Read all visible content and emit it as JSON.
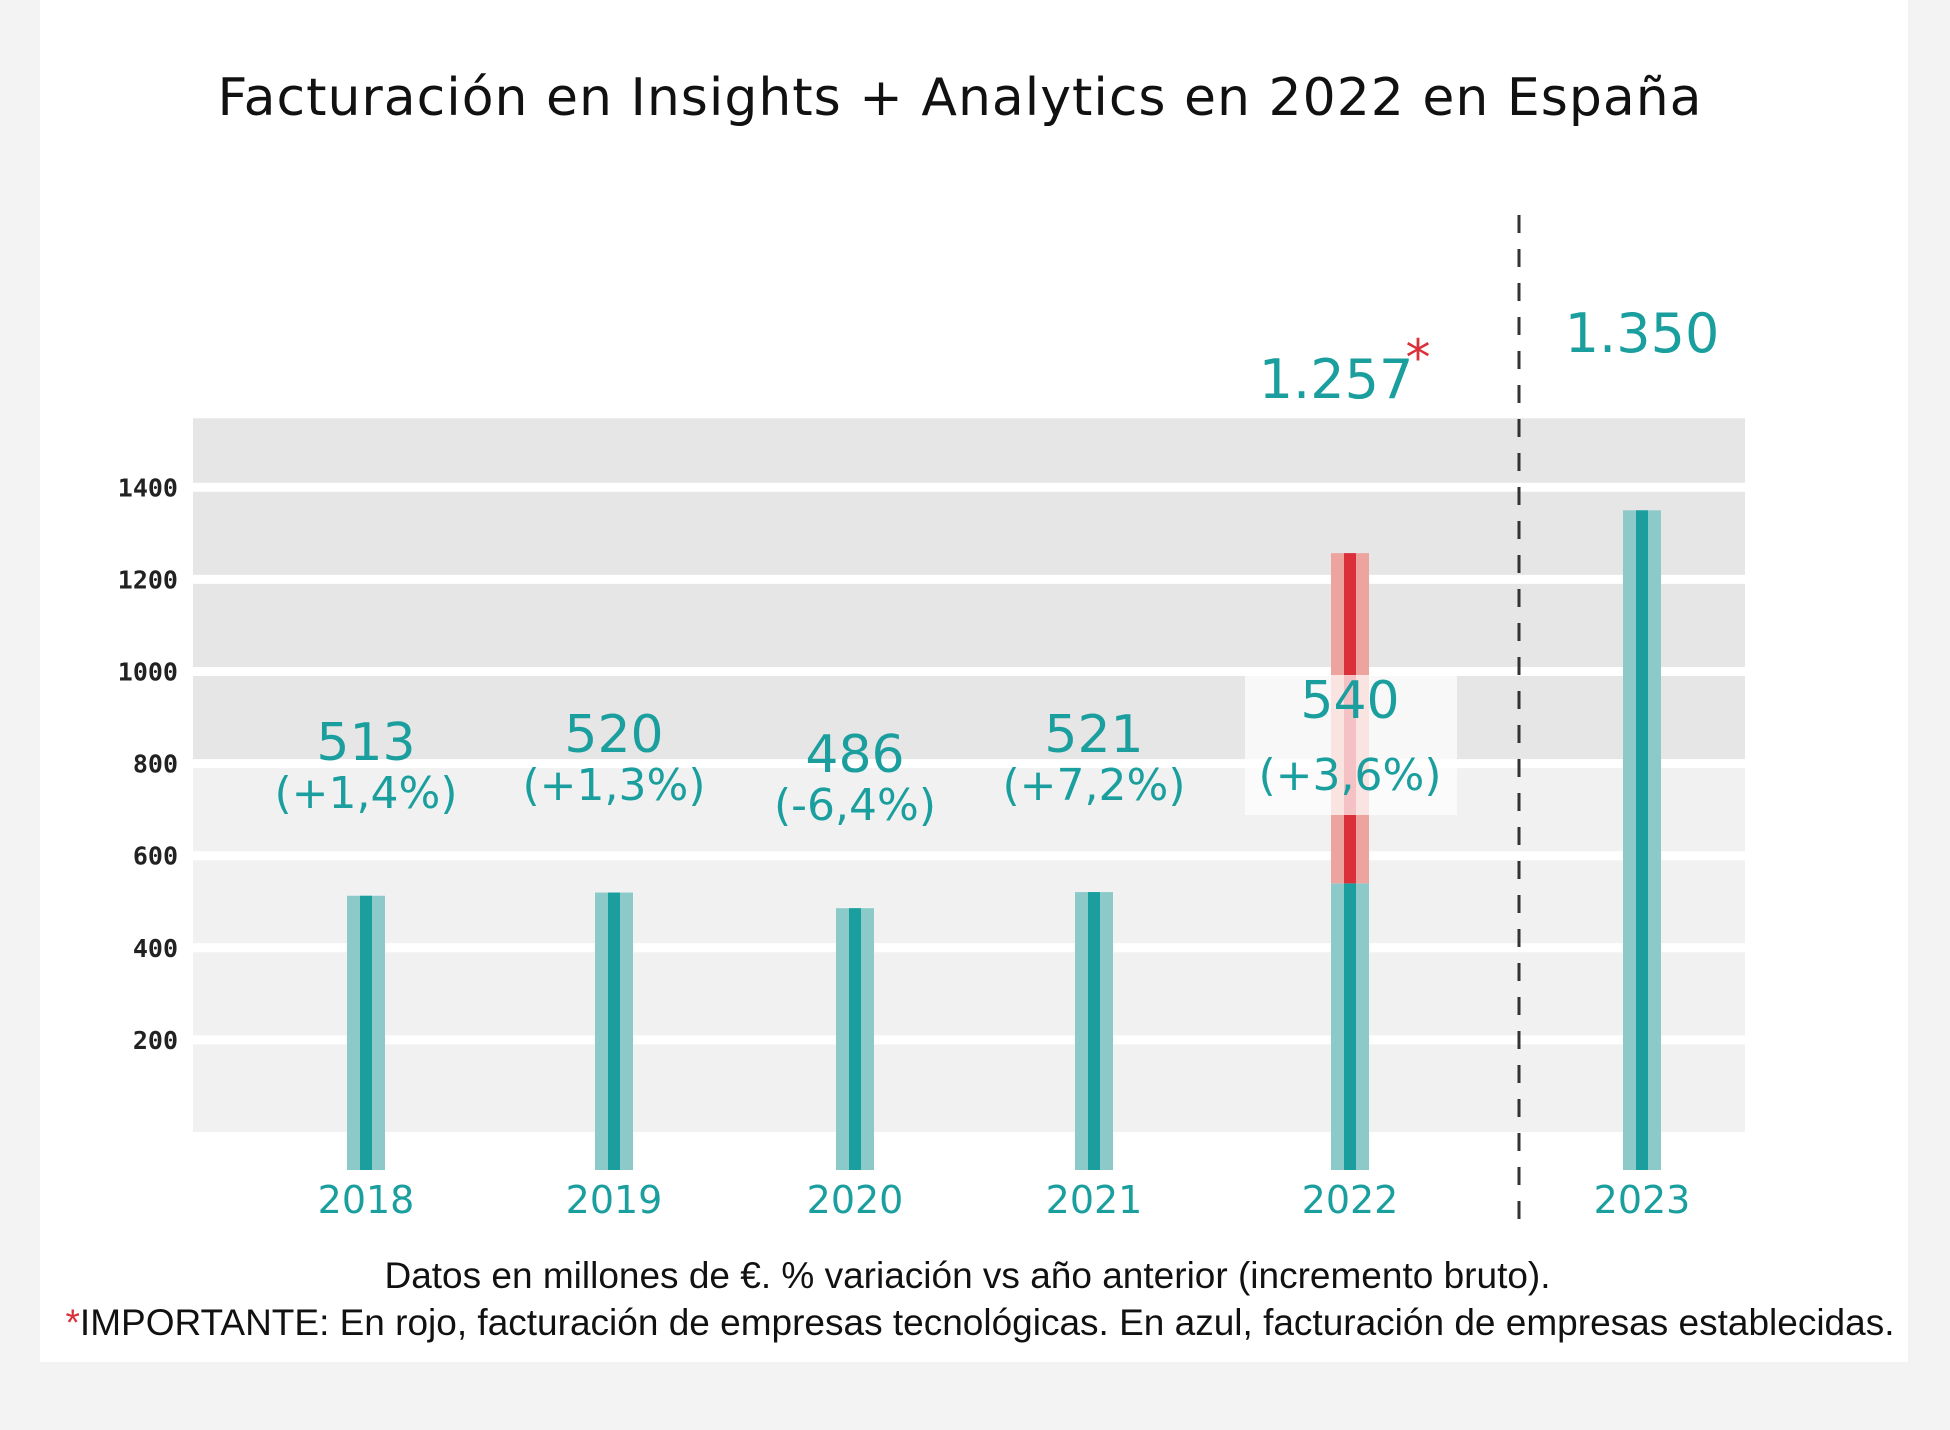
{
  "title": "Facturación en Insights + Analytics en 2022 en España",
  "footnote_1": "Datos en millones de €. % variación vs año anterior (incremento bruto).",
  "footnote_2_marker": "*",
  "footnote_2": "IMPORTANTE: En rojo, facturación de empresas tecnológicas. En azul, facturación de empresas establecidas.",
  "colors": {
    "established": "#1a9e9e",
    "established_light": "#8ccaca",
    "tech": "#d9303a",
    "tech_light": "#eea49e",
    "band_dark": "#e6e6e6",
    "band_light": "#f1f1f1"
  },
  "chart_data": {
    "type": "bar",
    "title": "Facturación en Insights + Analytics en 2022 en España",
    "categories": [
      "2018",
      "2019",
      "2020",
      "2021",
      "2022",
      "2023"
    ],
    "series": [
      {
        "name": "",
        "values": [
          513,
          520,
          486,
          521,
          540,
          1350
        ]
      },
      {
        "name": "",
        "values": [
          0,
          0,
          0,
          0,
          717,
          0
        ]
      }
    ],
    "value_labels": [
      "513",
      "520",
      "486",
      "521",
      "540",
      "1.350"
    ],
    "change_labels": [
      "(+1,4%)",
      "(+1,3%)",
      "(-6,4%)",
      "(+7,2%)",
      "(+3,6%)",
      ""
    ],
    "total_label_2022": "1.257",
    "total_label_2022_marker": "*",
    "yticks": [
      200,
      400,
      600,
      800,
      1000,
      1200,
      1400
    ],
    "ylim": [
      0,
      1550
    ],
    "grid": true,
    "separator_before": "2023"
  }
}
